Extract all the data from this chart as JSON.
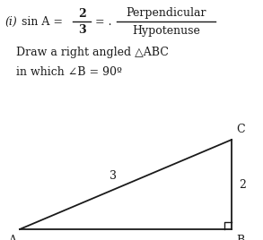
{
  "fraction_num": "2",
  "fraction_den": "3",
  "perp_text": "Perpendicular",
  "hyp_text": "Hypotenuse",
  "line2_text": "Draw a right angled △ABC",
  "line3_text": "in which ∠B = 90º",
  "label_A": "A",
  "label_B": "B",
  "label_C": "C",
  "label_hyp": "3",
  "label_perp": "2",
  "bg_color": "#ffffff",
  "text_color": "#1a1a1a",
  "line_color": "#1a1a1a",
  "italic_i": "(i)",
  "sin_text": "sin A = ",
  "eq_dot": "= ."
}
